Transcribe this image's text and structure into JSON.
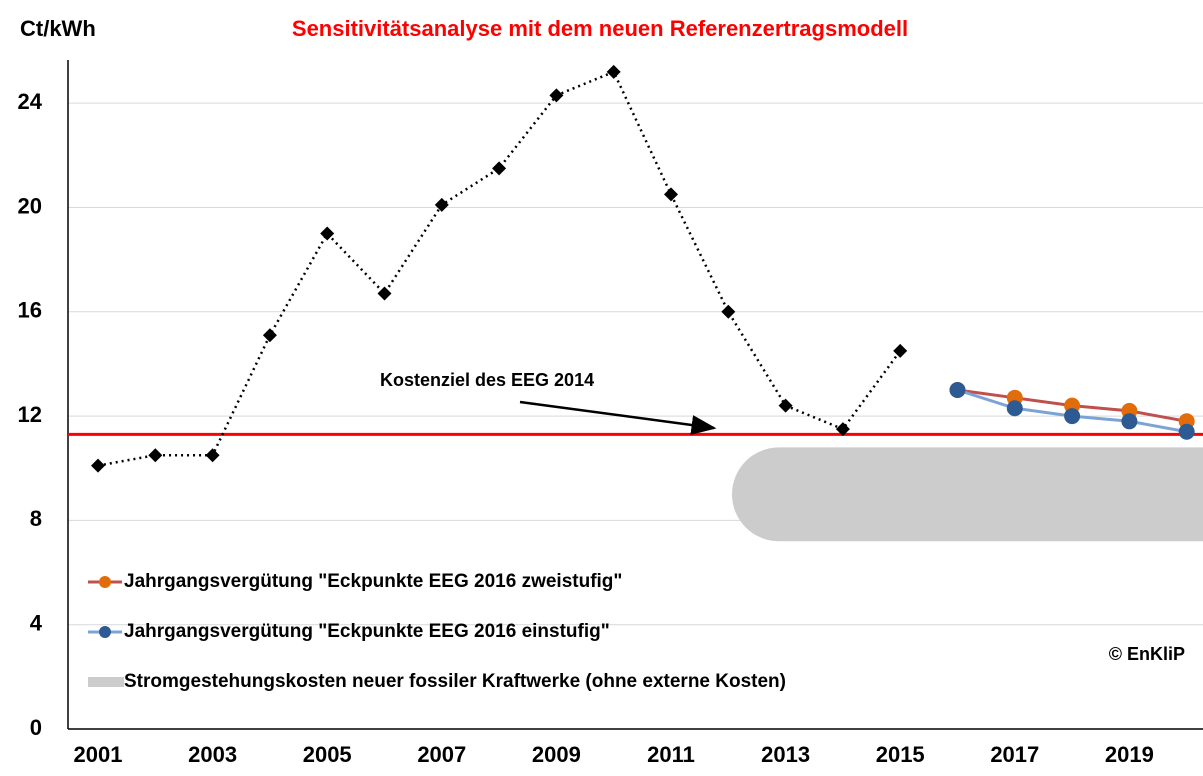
{
  "chart_data": {
    "type": "line",
    "title": "Sensitivitätsanalyse mit dem neuen Referenzertragsmodell",
    "y_label": "Ct/kWh",
    "categories": [
      "2001",
      null,
      "2003",
      null,
      "2005",
      null,
      "2007",
      null,
      "2009",
      null,
      "2011",
      null,
      "2013",
      null,
      "2015",
      null,
      "2017",
      null,
      "2019",
      null
    ],
    "series": [
      {
        "name": null,
        "color": "#000000",
        "marker": "diamond",
        "dash": "dotted",
        "values": [
          10.1,
          10.5,
          10.5,
          15.1,
          19.0,
          16.7,
          20.1,
          21.5,
          24.3,
          25.2,
          20.5,
          16.0,
          12.4,
          11.5,
          14.5,
          null,
          null,
          null,
          null,
          null
        ]
      },
      {
        "name": "Jahrgangsvergütung \"Eckpunkte EEG 2016 zweistufig\"",
        "color": "#c0504d",
        "marker_color": "#e36c0a",
        "marker": "circle",
        "values": [
          null,
          null,
          null,
          null,
          null,
          null,
          null,
          null,
          null,
          null,
          null,
          null,
          null,
          null,
          null,
          13.0,
          12.7,
          12.4,
          12.2,
          11.8
        ]
      },
      {
        "name": "Jahrgangsvergütung \"Eckpunkte EEG 2016 einstufig\"",
        "color": "#7ba3d6",
        "marker_color": "#2e5a93",
        "marker": "circle",
        "values": [
          null,
          null,
          null,
          null,
          null,
          null,
          null,
          null,
          null,
          null,
          null,
          null,
          null,
          null,
          null,
          13.0,
          12.3,
          12.0,
          11.8,
          11.4
        ]
      }
    ],
    "target_line": {
      "value": 11.3,
      "color": "#ff0000",
      "label": "Kostenziel des EEG 2014"
    },
    "band": {
      "name": "Stromgestehungskosten neuer fossiler Kraftwerke (ohne externe Kosten)",
      "range": [
        7.2,
        10.8
      ],
      "color": "#cccccc"
    },
    "copyright": "© EnKliP",
    "ylim": [
      0,
      26
    ],
    "yticks": [
      0,
      4,
      8,
      12,
      16,
      20,
      24
    ],
    "grid": true
  }
}
